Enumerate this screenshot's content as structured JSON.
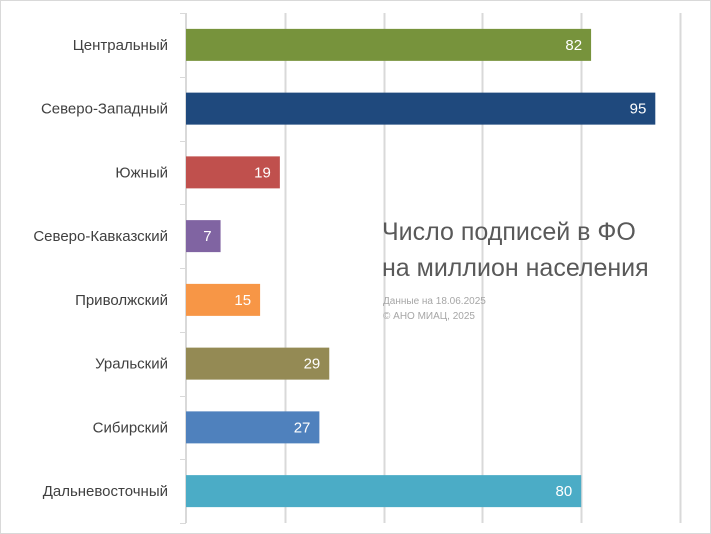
{
  "chart_data": {
    "type": "bar",
    "orientation": "horizontal",
    "title": "Число подписей в ФО на миллион населения",
    "title_lines": [
      "Число подписей в ФО",
      "на миллион населения"
    ],
    "notes": [
      "Данные на 18.06.2025",
      "© АНО МИАЦ, 2025"
    ],
    "categories": [
      "Центральный",
      "Северо-Западный",
      "Южный",
      "Северо-Кавказский",
      "Приволжский",
      "Уральский",
      "Сибирский",
      "Дальневосточный"
    ],
    "values": [
      82,
      95,
      19,
      7,
      15,
      29,
      27,
      80
    ],
    "colors": [
      "#77933c",
      "#1f497d",
      "#c0504d",
      "#8064a2",
      "#f79646",
      "#948a54",
      "#4f81bd",
      "#4bacc6"
    ],
    "xlim": [
      0,
      100
    ],
    "grid": true,
    "legend": "none"
  }
}
